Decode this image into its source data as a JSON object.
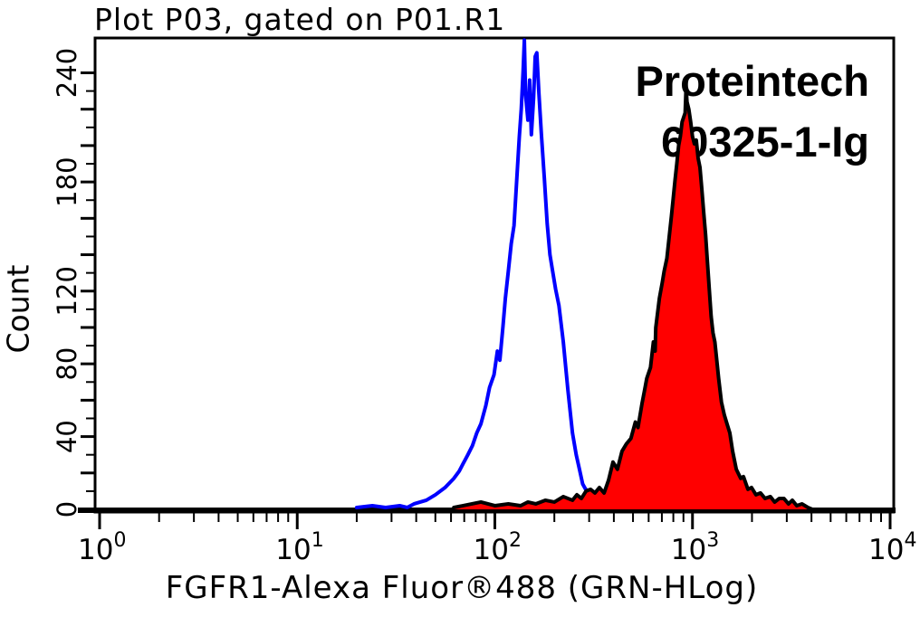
{
  "page": {
    "background": "#ffffff"
  },
  "chart_data": {
    "type": "line",
    "subtype": "flow-cytometry-histogram-overlay",
    "title": "Plot P03, gated on P01.R1",
    "xlabel": "FGFR1-Alexa Fluor®488 (GRN-HLog)",
    "ylabel": "Count",
    "x_scale": "log",
    "xlim": [
      1,
      10000
    ],
    "ylim": [
      0,
      240
    ],
    "grid": false,
    "legend_position": "none",
    "x_tick_base": "10",
    "x_tick_exponents": [
      0,
      1,
      2,
      3,
      4
    ],
    "y_tick_labels": [
      0,
      40,
      80,
      120,
      180,
      240
    ],
    "y_minor_tick_step": 10,
    "y_major_tick_step": 20,
    "annotations": {
      "line1": "Proteintech",
      "line2": "60325-1-Ig"
    },
    "colors": {
      "control_line": "#0000ff",
      "sample_fill": "#ff0000",
      "outline": "#000000"
    },
    "series": [
      {
        "name": "control (unfilled blue)",
        "color": "#0000ff",
        "fill": "none",
        "points": [
          [
            20,
            1
          ],
          [
            24,
            2
          ],
          [
            28,
            1
          ],
          [
            33,
            2
          ],
          [
            36,
            1
          ],
          [
            39,
            3
          ],
          [
            45,
            5
          ],
          [
            50,
            8
          ],
          [
            56,
            12
          ],
          [
            62,
            17
          ],
          [
            66,
            21
          ],
          [
            69,
            25
          ],
          [
            73,
            30
          ],
          [
            77,
            35
          ],
          [
            81,
            42
          ],
          [
            85,
            47
          ],
          [
            90,
            57
          ],
          [
            94,
            67
          ],
          [
            99,
            74
          ],
          [
            103,
            87
          ],
          [
            106,
            82
          ],
          [
            110,
            101
          ],
          [
            113,
            116
          ],
          [
            117,
            131
          ],
          [
            121,
            146
          ],
          [
            125,
            156
          ],
          [
            129,
            181
          ],
          [
            133,
            205
          ],
          [
            136,
            220
          ],
          [
            139,
            241
          ],
          [
            141,
            258
          ],
          [
            143,
            228
          ],
          [
            147,
            214
          ],
          [
            150,
            236
          ],
          [
            153,
            206
          ],
          [
            157,
            226
          ],
          [
            160,
            249
          ],
          [
            163,
            251
          ],
          [
            167,
            229
          ],
          [
            172,
            206
          ],
          [
            178,
            182
          ],
          [
            184,
            157
          ],
          [
            190,
            140
          ],
          [
            196,
            131
          ],
          [
            203,
            121
          ],
          [
            211,
            112
          ],
          [
            222,
            92
          ],
          [
            234,
            66
          ],
          [
            247,
            42
          ],
          [
            258,
            30
          ],
          [
            268,
            22
          ],
          [
            278,
            14
          ],
          [
            288,
            11
          ],
          [
            300,
            10
          ],
          [
            312,
            10
          ],
          [
            324,
            9
          ],
          [
            336,
            8
          ],
          [
            345,
            6
          ]
        ]
      },
      {
        "name": "FGFR1-Alexa Fluor 488 (red filled)",
        "color": "#000000",
        "fill": "#ff0000",
        "points": [
          [
            62,
            1
          ],
          [
            85,
            4
          ],
          [
            100,
            2
          ],
          [
            117,
            3
          ],
          [
            135,
            2
          ],
          [
            147,
            4
          ],
          [
            161,
            3
          ],
          [
            180,
            5
          ],
          [
            200,
            4
          ],
          [
            222,
            7
          ],
          [
            247,
            5
          ],
          [
            260,
            8
          ],
          [
            274,
            6
          ],
          [
            289,
            10
          ],
          [
            305,
            11
          ],
          [
            321,
            9
          ],
          [
            338,
            12
          ],
          [
            357,
            9
          ],
          [
            376,
            16
          ],
          [
            396,
            26
          ],
          [
            417,
            22
          ],
          [
            440,
            32
          ],
          [
            463,
            36
          ],
          [
            488,
            39
          ],
          [
            514,
            48
          ],
          [
            530,
            45
          ],
          [
            555,
            58
          ],
          [
            571,
            65
          ],
          [
            587,
            72
          ],
          [
            613,
            78
          ],
          [
            634,
            92
          ],
          [
            647,
            87
          ],
          [
            652,
            100
          ],
          [
            680,
            116
          ],
          [
            704,
            125
          ],
          [
            719,
            131
          ],
          [
            742,
            138
          ],
          [
            782,
            161
          ],
          [
            799,
            171
          ],
          [
            816,
            181
          ],
          [
            833,
            190
          ],
          [
            851,
            200
          ],
          [
            868,
            205
          ],
          [
            886,
            213
          ],
          [
            918,
            218
          ],
          [
            928,
            232
          ],
          [
            938,
            224
          ],
          [
            958,
            220
          ],
          [
            979,
            213
          ],
          [
            1000,
            205
          ],
          [
            1022,
            201
          ],
          [
            1045,
            203
          ],
          [
            1068,
            193
          ],
          [
            1091,
            188
          ],
          [
            1115,
            176
          ],
          [
            1140,
            163
          ],
          [
            1165,
            151
          ],
          [
            1190,
            136
          ],
          [
            1216,
            121
          ],
          [
            1243,
            106
          ],
          [
            1270,
            97
          ],
          [
            1298,
            92
          ],
          [
            1327,
            82
          ],
          [
            1356,
            72
          ],
          [
            1401,
            59
          ],
          [
            1448,
            52
          ],
          [
            1495,
            47
          ],
          [
            1545,
            42
          ],
          [
            1596,
            32
          ],
          [
            1666,
            22
          ],
          [
            1755,
            17
          ],
          [
            1811,
            18
          ],
          [
            1908,
            11
          ],
          [
            1989,
            12
          ],
          [
            2096,
            8
          ],
          [
            2209,
            9
          ],
          [
            2328,
            6
          ],
          [
            2477,
            7
          ],
          [
            2606,
            4
          ],
          [
            2750,
            6
          ],
          [
            2900,
            6
          ],
          [
            3060,
            3
          ],
          [
            3200,
            5
          ],
          [
            3370,
            2
          ],
          [
            3580,
            3
          ],
          [
            3840,
            1
          ],
          [
            4040,
            0
          ]
        ]
      }
    ]
  }
}
